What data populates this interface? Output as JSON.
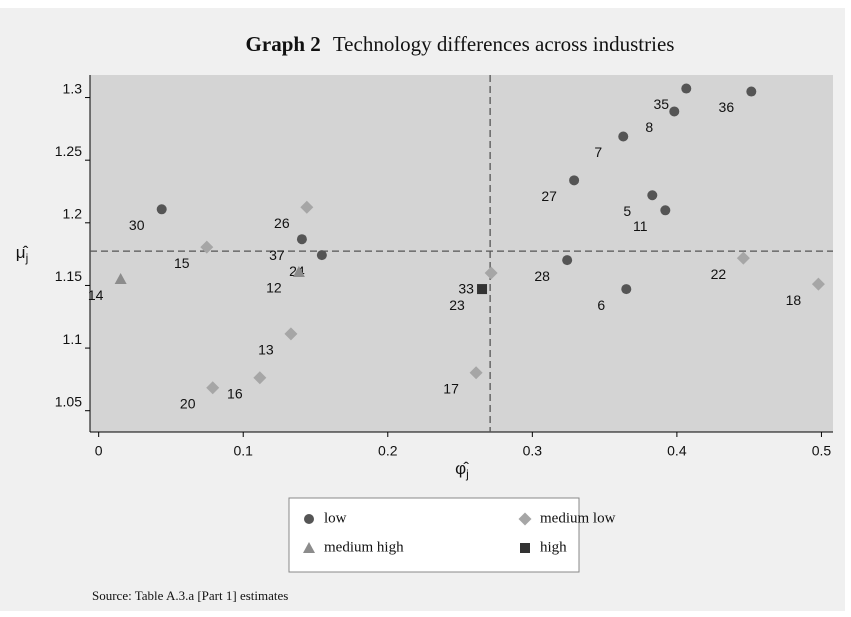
{
  "chart_data": {
    "type": "scatter",
    "title": {
      "prefix": "Graph 2",
      "text": "Technology differences across industries"
    },
    "xlabel": {
      "symbol": "φ̂",
      "sub": "j"
    },
    "ylabel": {
      "symbol": "μ̂",
      "sub": "j"
    },
    "xlim": [
      -0.006,
      0.508
    ],
    "ylim": [
      1.033,
      1.318
    ],
    "xticks": [
      0,
      0.1,
      0.2,
      0.3,
      0.4,
      0.5
    ],
    "yticks": [
      1.05,
      1.1,
      1.15,
      1.2,
      1.25,
      1.3
    ],
    "vline": 0.2708,
    "hline": 1.1774,
    "series": [
      {
        "name": "low",
        "marker": "circle",
        "color": "#555555",
        "x": [
          0.0436,
          0.1406,
          0.1544,
          0.3289,
          0.3241,
          0.3629,
          0.365,
          0.383,
          0.392,
          0.3982,
          0.4065,
          0.4515
        ],
        "values": [
          1.2108,
          1.1869,
          1.1742,
          1.2339,
          1.1702,
          1.2689,
          1.1471,
          1.222,
          1.21,
          1.2889,
          1.3072,
          1.3048
        ],
        "labels": [
          "30",
          "37",
          "24",
          "27",
          "28",
          "7",
          "6",
          "5",
          "11",
          "8",
          "35",
          "36"
        ]
      },
      {
        "name": "medium low",
        "marker": "diamond",
        "color": "#a6a6a6",
        "x": [
          0.0748,
          0.144,
          0.133,
          0.1115,
          0.0789,
          0.2715,
          0.2611,
          0.446,
          0.4979
        ],
        "values": [
          1.1806,
          1.2124,
          1.1113,
          1.0763,
          1.0683,
          1.1599,
          1.0803,
          1.1718,
          1.1511
        ],
        "labels": [
          "15",
          "26",
          "13",
          "16",
          "20",
          "33",
          "17",
          "22",
          "18"
        ]
      },
      {
        "name": "medium high",
        "marker": "triangle",
        "color": "#8c8c8c",
        "x": [
          0.0152,
          0.1385
        ],
        "values": [
          1.1551,
          1.1607
        ],
        "labels": [
          "14",
          "12"
        ]
      },
      {
        "name": "high",
        "marker": "square",
        "color": "#333333",
        "x": [
          0.2652
        ],
        "values": [
          1.1471
        ],
        "labels": [
          "23"
        ]
      }
    ],
    "source": "Source: Table A.3.a [Part 1] estimates"
  }
}
